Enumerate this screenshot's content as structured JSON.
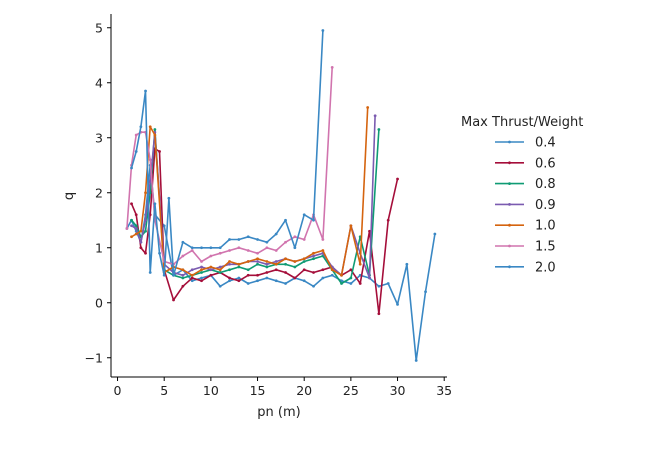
{
  "chart_data": {
    "type": "line",
    "xlabel": "pn (m)",
    "ylabel": "q",
    "xlim": [
      -0.7,
      35.3
    ],
    "ylim": [
      -1.35,
      5.25
    ],
    "xticks": [
      0,
      5,
      10,
      15,
      20,
      25,
      30,
      35
    ],
    "yticks": [
      -1,
      0,
      1,
      2,
      3,
      4,
      5
    ],
    "grid": false,
    "legend": {
      "title": "Max Thrust/Weight",
      "placement": "right"
    },
    "series": [
      {
        "name": "0.4",
        "color": "#3a88c4",
        "x": [
          1.0,
          1.5,
          2.0,
          2.5,
          3.0,
          3.5,
          4.0,
          5.0,
          6.0,
          7.0,
          8.0,
          9.0,
          10.0,
          11.0,
          12.0,
          13.0,
          14.0,
          15.0,
          16.0,
          17.0,
          18.0,
          19.0,
          20.0,
          21.0,
          22.0,
          23.0,
          24.0,
          25.0,
          26.0,
          27.0,
          28.0,
          29.0,
          30.0,
          31.0,
          32.0,
          33.0,
          34.0
        ],
        "y": [
          1.35,
          1.5,
          1.3,
          1.1,
          1.6,
          2.5,
          1.6,
          1.4,
          0.5,
          0.6,
          0.4,
          0.45,
          0.5,
          0.3,
          0.4,
          0.45,
          0.35,
          0.4,
          0.45,
          0.4,
          0.35,
          0.45,
          0.4,
          0.3,
          0.45,
          0.5,
          0.4,
          0.35,
          0.5,
          0.45,
          0.3,
          0.35,
          -0.03,
          0.7,
          -1.05,
          0.2,
          1.25
        ]
      },
      {
        "name": "0.6",
        "color": "#a50e3a",
        "x": [
          1.5,
          2.0,
          2.5,
          3.0,
          3.5,
          4.0,
          4.5,
          5.0,
          6.0,
          7.0,
          8.0,
          9.0,
          10.0,
          11.0,
          12.0,
          13.0,
          14.0,
          15.0,
          16.0,
          17.0,
          18.0,
          19.0,
          20.0,
          21.0,
          22.0,
          23.0,
          24.0,
          25.0,
          26.0,
          27.0,
          28.0,
          29.0,
          30.0
        ],
        "y": [
          1.8,
          1.6,
          1.0,
          0.9,
          1.6,
          2.8,
          2.75,
          0.6,
          0.05,
          0.3,
          0.45,
          0.4,
          0.5,
          0.55,
          0.45,
          0.4,
          0.5,
          0.5,
          0.55,
          0.6,
          0.55,
          0.45,
          0.6,
          0.55,
          0.6,
          0.65,
          0.5,
          0.6,
          0.35,
          1.3,
          -0.2,
          1.5,
          2.25
        ]
      },
      {
        "name": "0.8",
        "color": "#0f9b74",
        "x": [
          1.5,
          2.0,
          2.5,
          3.0,
          3.5,
          4.0,
          5.0,
          6.0,
          7.0,
          8.0,
          9.0,
          10.0,
          11.0,
          12.0,
          13.0,
          14.0,
          15.0,
          16.0,
          17.0,
          18.0,
          19.0,
          20.0,
          21.0,
          22.0,
          23.0,
          24.0,
          25.0,
          26.0,
          27.0,
          28.0
        ],
        "y": [
          1.5,
          1.4,
          1.2,
          1.3,
          2.0,
          3.15,
          0.6,
          0.5,
          0.45,
          0.5,
          0.55,
          0.6,
          0.55,
          0.6,
          0.65,
          0.6,
          0.7,
          0.65,
          0.7,
          0.7,
          0.65,
          0.75,
          0.8,
          0.85,
          0.6,
          0.35,
          0.45,
          1.2,
          0.5,
          3.15
        ]
      },
      {
        "name": "0.9",
        "color": "#7b5bb0",
        "x": [
          1.5,
          2.0,
          2.5,
          3.0,
          3.5,
          4.0,
          5.0,
          6.0,
          7.0,
          8.0,
          9.0,
          10.0,
          11.0,
          12.0,
          13.0,
          14.0,
          15.0,
          16.0,
          17.0,
          18.0,
          19.0,
          20.0,
          21.0,
          22.0,
          23.0,
          24.0,
          25.0,
          26.0,
          27.0,
          27.6
        ],
        "y": [
          1.4,
          1.35,
          1.1,
          1.5,
          2.2,
          3.1,
          0.7,
          0.55,
          0.5,
          0.6,
          0.65,
          0.6,
          0.65,
          0.7,
          0.7,
          0.75,
          0.75,
          0.7,
          0.75,
          0.8,
          0.75,
          0.8,
          0.85,
          0.9,
          0.65,
          0.5,
          1.4,
          0.9,
          0.45,
          3.4
        ]
      },
      {
        "name": "1.0",
        "color": "#d5640f",
        "x": [
          1.5,
          2.0,
          2.5,
          3.0,
          3.5,
          4.0,
          5.0,
          6.0,
          7.0,
          8.0,
          9.0,
          10.0,
          11.0,
          12.0,
          13.0,
          14.0,
          15.0,
          16.0,
          17.0,
          18.0,
          19.0,
          20.0,
          21.0,
          22.0,
          23.0,
          24.0,
          25.0,
          26.0,
          26.8
        ],
        "y": [
          1.2,
          1.25,
          1.3,
          2.0,
          3.2,
          3.05,
          0.55,
          0.65,
          0.6,
          0.5,
          0.6,
          0.65,
          0.6,
          0.75,
          0.7,
          0.75,
          0.8,
          0.75,
          0.7,
          0.8,
          0.75,
          0.8,
          0.9,
          0.95,
          0.6,
          0.5,
          1.4,
          0.7,
          3.55
        ]
      },
      {
        "name": "1.5",
        "color": "#d174ae",
        "x": [
          1.0,
          1.5,
          2.0,
          2.5,
          3.0,
          3.5,
          4.0,
          5.0,
          6.0,
          7.0,
          8.0,
          9.0,
          10.0,
          11.0,
          12.0,
          13.0,
          14.0,
          15.0,
          16.0,
          17.0,
          18.0,
          19.0,
          20.0,
          21.0,
          22.0,
          23.0
        ],
        "y": [
          1.35,
          2.5,
          3.05,
          3.1,
          3.1,
          2.6,
          1.5,
          0.75,
          0.7,
          0.85,
          0.95,
          0.75,
          0.85,
          0.9,
          0.95,
          1.0,
          0.95,
          0.9,
          1.0,
          0.95,
          1.1,
          1.2,
          1.15,
          1.6,
          1.15,
          4.28
        ]
      },
      {
        "name": "2.0",
        "color": "#3a88c4",
        "x": [
          1.5,
          2.0,
          2.5,
          3.0,
          3.5,
          4.0,
          4.5,
          5.0,
          5.5,
          6.0,
          7.0,
          8.0,
          9.0,
          10.0,
          11.0,
          12.0,
          13.0,
          14.0,
          15.0,
          16.0,
          17.0,
          18.0,
          19.0,
          20.0,
          21.0,
          22.0
        ],
        "y": [
          2.45,
          2.75,
          3.2,
          3.85,
          0.55,
          1.8,
          0.9,
          0.5,
          1.9,
          0.5,
          1.1,
          1.0,
          1.0,
          1.0,
          1.0,
          1.15,
          1.15,
          1.2,
          1.15,
          1.1,
          1.25,
          1.5,
          1.0,
          1.6,
          1.5,
          4.95
        ]
      }
    ]
  }
}
